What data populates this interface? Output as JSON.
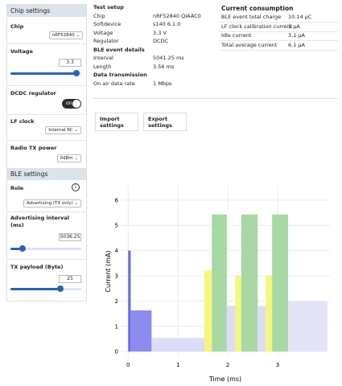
{
  "sidebar": {
    "chip_settings": {
      "title": "Chip settings",
      "chip": {
        "label": "Chip",
        "value": "nRF52840"
      },
      "voltage": {
        "label": "Voltage",
        "value": "3.3"
      },
      "dcdc": {
        "label": "DCDC regulator",
        "toggle": "on"
      },
      "lf_clock": {
        "label": "LF clock",
        "value": "Internal RC"
      },
      "radio_tx_power": {
        "label": "Radio TX power",
        "value": "0dBm"
      }
    },
    "ble_settings": {
      "title": "BLE settings",
      "role": {
        "label": "Role",
        "value": "Advertising (TX only)"
      },
      "advertising_interval": {
        "label": "Advertising interval (ms)",
        "value": "5036.25"
      },
      "tx_payload": {
        "label": "TX payload (Byte)",
        "value": "25"
      }
    }
  },
  "test_setup": {
    "title": "Test setup",
    "rows": [
      [
        "Chip",
        "nRF52840 QIAAC0"
      ],
      [
        "Softdevice",
        "s140 6.1.0"
      ],
      [
        "Voltage",
        "3.3 V"
      ],
      [
        "Regulator",
        "DCDC"
      ]
    ]
  },
  "ble_event_details": {
    "title": "BLE event details",
    "rows": [
      [
        "Interval",
        "5041.25 ms"
      ],
      [
        "Length",
        "3.56 ms"
      ]
    ]
  },
  "data_transmission": {
    "title": "Data transmission",
    "rows": [
      [
        "On air data rate",
        "1 Mbps"
      ]
    ]
  },
  "current_consumption": {
    "title": "Current consumption",
    "rows": [
      [
        "BLE event total charge",
        "10.14 µC"
      ],
      [
        "LF clock calibration current",
        "1 µA"
      ],
      [
        "Idle current",
        "3.1 µA"
      ],
      [
        "Total average current",
        "6.1 µA"
      ]
    ]
  },
  "buttons": [
    "Import settings",
    "Export settings"
  ],
  "chart_data": {
    "type": "bar",
    "xlabel": "Time (ms)",
    "ylabel": "Current (mA)",
    "xlim": [
      -0.15,
      4.05
    ],
    "ylim": [
      -0.25,
      6.6
    ],
    "xticks": [
      0,
      1,
      2,
      3
    ],
    "yticks": [
      0,
      1,
      2,
      3,
      4,
      5,
      6
    ],
    "grid": true,
    "bars": [
      {
        "x0": 0,
        "x1": 0.05,
        "value": 4.0,
        "color": "#6a6ae8"
      },
      {
        "x0": 0.05,
        "x1": 0.47,
        "value": 1.63,
        "color": "#8c8cee"
      },
      {
        "x0": 0.47,
        "x1": 1.53,
        "value": 0.54,
        "color": "#dcdcf7"
      },
      {
        "x0": 1.53,
        "x1": 1.68,
        "value": 3.2,
        "color": "#f6f67c"
      },
      {
        "x0": 1.68,
        "x1": 1.98,
        "value": 5.43,
        "color": "#a8d8a4"
      },
      {
        "x0": 1.98,
        "x1": 2.15,
        "value": 1.8,
        "color": "#dcdcf7"
      },
      {
        "x0": 2.15,
        "x1": 2.27,
        "value": 3.0,
        "color": "#f6f67c"
      },
      {
        "x0": 2.27,
        "x1": 2.6,
        "value": 5.43,
        "color": "#a8d8a4"
      },
      {
        "x0": 2.6,
        "x1": 2.76,
        "value": 1.8,
        "color": "#dcdcf7"
      },
      {
        "x0": 2.76,
        "x1": 2.89,
        "value": 3.0,
        "color": "#f6f67c"
      },
      {
        "x0": 2.89,
        "x1": 3.21,
        "value": 5.43,
        "color": "#a8d8a4"
      },
      {
        "x0": 3.21,
        "x1": 4.0,
        "value": 2.0,
        "color": "#e4e4f8"
      }
    ]
  }
}
